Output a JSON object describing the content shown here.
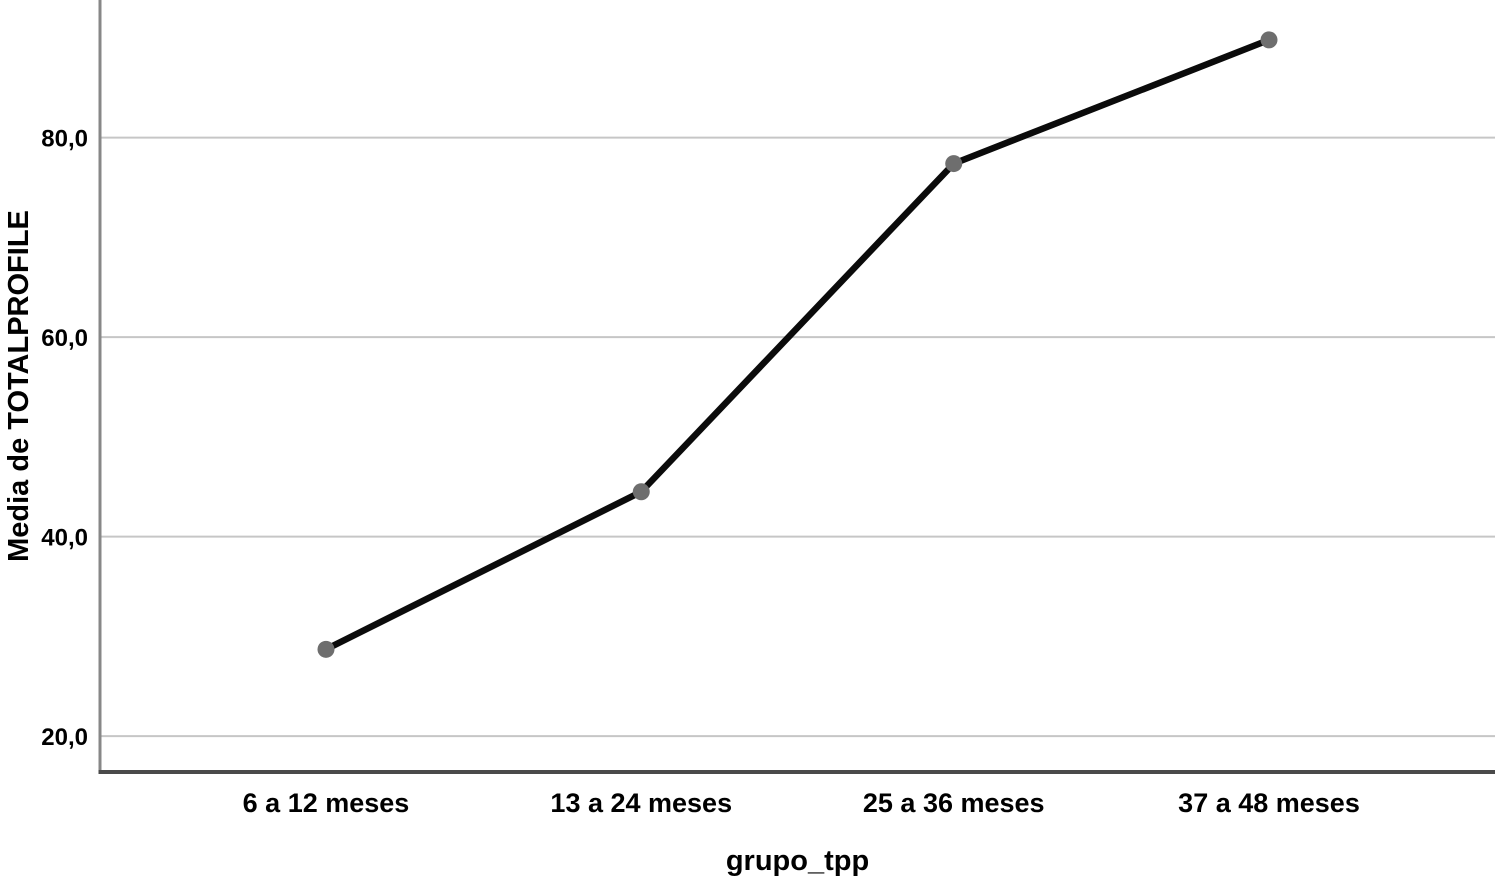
{
  "chart_data": {
    "type": "line",
    "categories": [
      "6 a 12 meses",
      "13 a 24 meses",
      "25 a 36 meses",
      "37 a 48 meses"
    ],
    "values": [
      28.7,
      44.5,
      77.4,
      89.8
    ],
    "title": "",
    "xlabel": "grupo_tpp",
    "ylabel": "Media de TOTALPROFILE",
    "yticks": [
      20,
      40,
      60,
      80
    ],
    "ytick_labels": [
      "20,0",
      "40,0",
      "60,0",
      "80,0"
    ],
    "ylim": [
      16.4,
      93.8
    ],
    "grid": "horizontal",
    "legend": "none",
    "colors": {
      "line": "#0b0b0b",
      "marker": "#6e6e6e",
      "gridline": "#c6c6c6",
      "y_axis": "#878787",
      "x_axis": "#4a4a4a",
      "text": "#000000",
      "background": "#ffffff"
    }
  }
}
